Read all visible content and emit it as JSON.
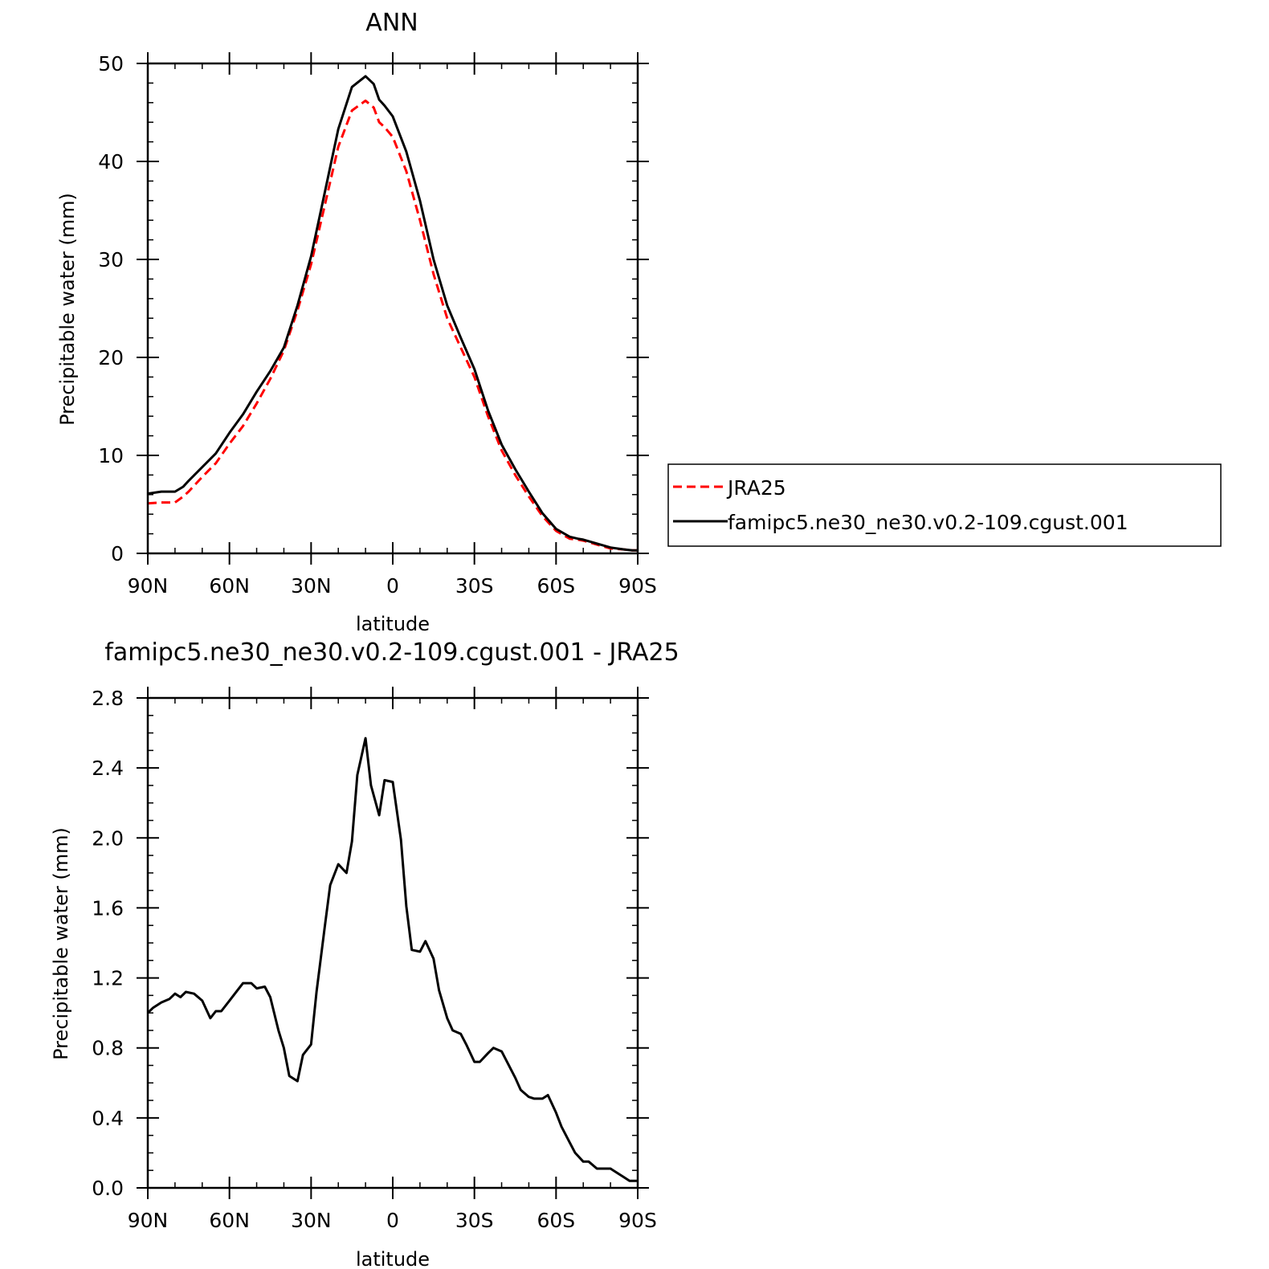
{
  "chart_data": [
    {
      "type": "line",
      "title": "ANN",
      "xlabel": "latitude",
      "ylabel": "Precipitable water (mm)",
      "xlim": [
        90,
        -90
      ],
      "ylim": [
        0,
        50
      ],
      "xtick_values": [
        90,
        60,
        30,
        0,
        -30,
        -60,
        -90
      ],
      "xtick_labels": [
        "90N",
        "60N",
        "30N",
        "0",
        "30S",
        "60S",
        "90S"
      ],
      "ytick_values": [
        0,
        10,
        20,
        30,
        40,
        50
      ],
      "ytick_labels": [
        "0",
        "10",
        "20",
        "30",
        "40",
        "50"
      ],
      "grid": false,
      "legend_position": "right",
      "series": [
        {
          "name": "JRA25",
          "color": "#ff0000",
          "dash": "dashed",
          "x": [
            90,
            85,
            80,
            77,
            75,
            70,
            65,
            60,
            55,
            50,
            45,
            40,
            35,
            30,
            25,
            20,
            15,
            10,
            7,
            5,
            3,
            0,
            -5,
            -10,
            -15,
            -20,
            -25,
            -30,
            -35,
            -40,
            -45,
            -50,
            -55,
            -60,
            -65,
            -68,
            -70,
            -75,
            -80,
            -85,
            -88,
            -90
          ],
          "y": [
            5.1,
            5.2,
            5.2,
            5.8,
            6.3,
            7.8,
            9.2,
            11.2,
            13.0,
            15.3,
            17.8,
            20.7,
            24.8,
            29.5,
            35.5,
            41.5,
            45.2,
            46.2,
            45.5,
            44.0,
            43.5,
            42.5,
            39.0,
            34.0,
            28.5,
            24.0,
            21.0,
            18.0,
            14.0,
            10.5,
            8.0,
            5.8,
            3.8,
            2.3,
            1.5,
            1.4,
            1.3,
            0.9,
            0.5,
            0.4,
            0.3,
            0.3
          ]
        },
        {
          "name": "famipc5.ne30_ne30.v0.2-109.cgust.001",
          "color": "#000000",
          "dash": "solid",
          "x": [
            90,
            85,
            80,
            77,
            75,
            70,
            65,
            60,
            55,
            50,
            45,
            40,
            35,
            30,
            25,
            20,
            15,
            10,
            7,
            5,
            3,
            0,
            -5,
            -10,
            -15,
            -20,
            -25,
            -30,
            -35,
            -40,
            -45,
            -50,
            -55,
            -60,
            -65,
            -68,
            -70,
            -75,
            -80,
            -85,
            -88,
            -90
          ],
          "y": [
            6.1,
            6.3,
            6.3,
            6.8,
            7.4,
            8.8,
            10.2,
            12.3,
            14.2,
            16.5,
            18.6,
            21.0,
            25.3,
            30.3,
            36.8,
            43.3,
            47.6,
            48.7,
            47.9,
            46.3,
            45.7,
            44.6,
            41.0,
            36.0,
            30.0,
            25.3,
            22.0,
            18.8,
            14.6,
            11.1,
            8.6,
            6.3,
            4.1,
            2.5,
            1.7,
            1.5,
            1.4,
            1.0,
            0.6,
            0.4,
            0.3,
            0.3
          ]
        }
      ]
    },
    {
      "type": "line",
      "title": "famipc5.ne30_ne30.v0.2-109.cgust.001 - JRA25",
      "xlabel": "latitude",
      "ylabel": "Precipitable water (mm)",
      "xlim": [
        90,
        -90
      ],
      "ylim": [
        0,
        2.8
      ],
      "xtick_values": [
        90,
        60,
        30,
        0,
        -30,
        -60,
        -90
      ],
      "xtick_labels": [
        "90N",
        "60N",
        "30N",
        "0",
        "30S",
        "60S",
        "90S"
      ],
      "ytick_values": [
        0,
        0.4,
        0.8,
        1.2,
        1.6,
        2.0,
        2.4,
        2.8
      ],
      "ytick_labels": [
        "0.0",
        "0.4",
        "0.8",
        "1.2",
        "1.6",
        "2.0",
        "2.4",
        "2.8"
      ],
      "grid": false,
      "series": [
        {
          "color": "#000000",
          "dash": "solid",
          "x": [
            90,
            88,
            85,
            82,
            80,
            78,
            76,
            73,
            70,
            67,
            65,
            63,
            60,
            57,
            55,
            52,
            50,
            47,
            45,
            42,
            40,
            38,
            35,
            33,
            30,
            28,
            25,
            23,
            20,
            17,
            15,
            13,
            10,
            8,
            5,
            3,
            0,
            -3,
            -5,
            -7,
            -10,
            -12,
            -15,
            -17,
            -20,
            -22,
            -25,
            -27,
            -30,
            -32,
            -35,
            -37,
            -40,
            -42,
            -45,
            -47,
            -50,
            -52,
            -55,
            -57,
            -60,
            -62,
            -65,
            -67,
            -70,
            -72,
            -75,
            -77,
            -80,
            -82,
            -85,
            -87,
            -90
          ],
          "y": [
            1.0,
            1.03,
            1.06,
            1.08,
            1.11,
            1.09,
            1.12,
            1.11,
            1.07,
            0.97,
            1.01,
            1.01,
            1.07,
            1.13,
            1.17,
            1.17,
            1.14,
            1.15,
            1.09,
            0.9,
            0.8,
            0.64,
            0.61,
            0.76,
            0.82,
            1.12,
            1.49,
            1.73,
            1.85,
            1.8,
            1.98,
            2.36,
            2.57,
            2.3,
            2.13,
            2.33,
            2.32,
            1.99,
            1.61,
            1.36,
            1.35,
            1.41,
            1.31,
            1.13,
            0.97,
            0.9,
            0.88,
            0.82,
            0.72,
            0.72,
            0.77,
            0.8,
            0.78,
            0.72,
            0.63,
            0.56,
            0.52,
            0.51,
            0.51,
            0.53,
            0.43,
            0.35,
            0.26,
            0.2,
            0.15,
            0.15,
            0.11,
            0.11,
            0.11,
            0.09,
            0.06,
            0.04,
            0.04
          ]
        }
      ]
    }
  ]
}
